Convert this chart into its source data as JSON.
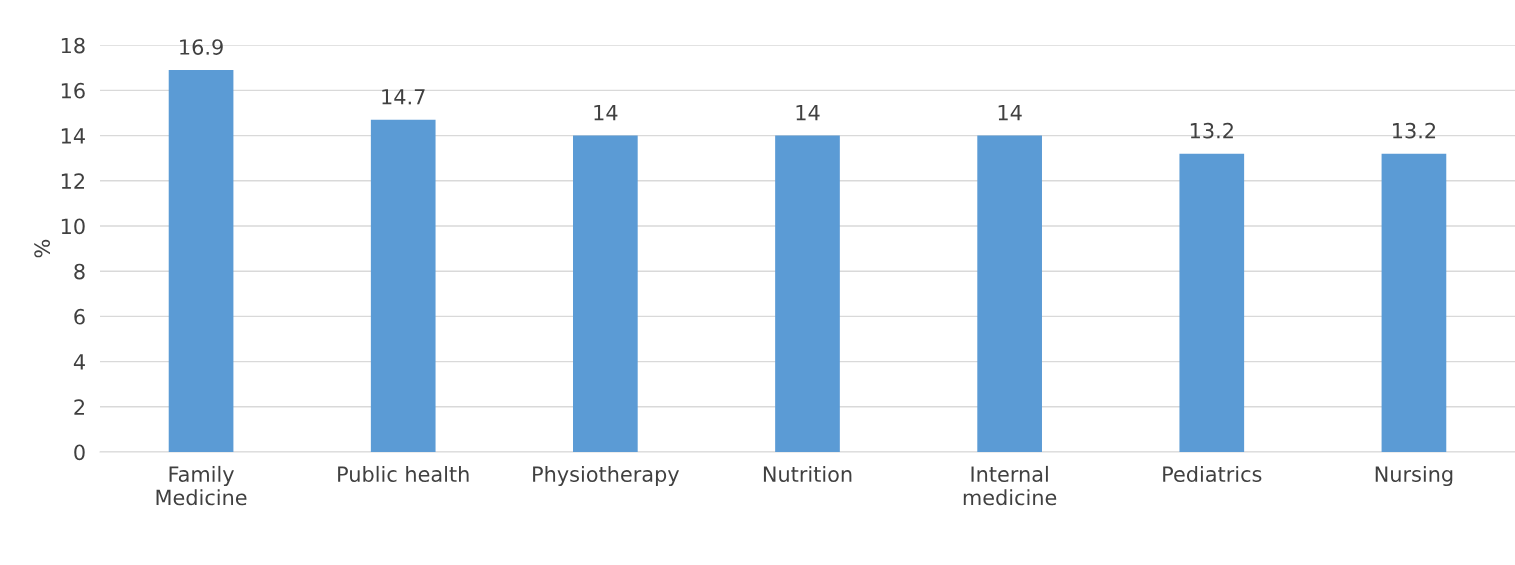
{
  "chart_data": {
    "type": "bar",
    "ylabel": "%",
    "categories": [
      "Family\nMedicine",
      "Public health",
      "Physiotherapy",
      "Nutrition",
      "Internal\nmedicine",
      "Pediatrics",
      "Nursing"
    ],
    "values": [
      16.9,
      14.7,
      14,
      14,
      14,
      13.2,
      13.2
    ],
    "color": "#5b9bd5",
    "ylim": [
      0,
      18
    ],
    "yticks": [
      0,
      2,
      4,
      6,
      8,
      10,
      12,
      14,
      16,
      18
    ],
    "grid": "y",
    "data_labels": true
  }
}
